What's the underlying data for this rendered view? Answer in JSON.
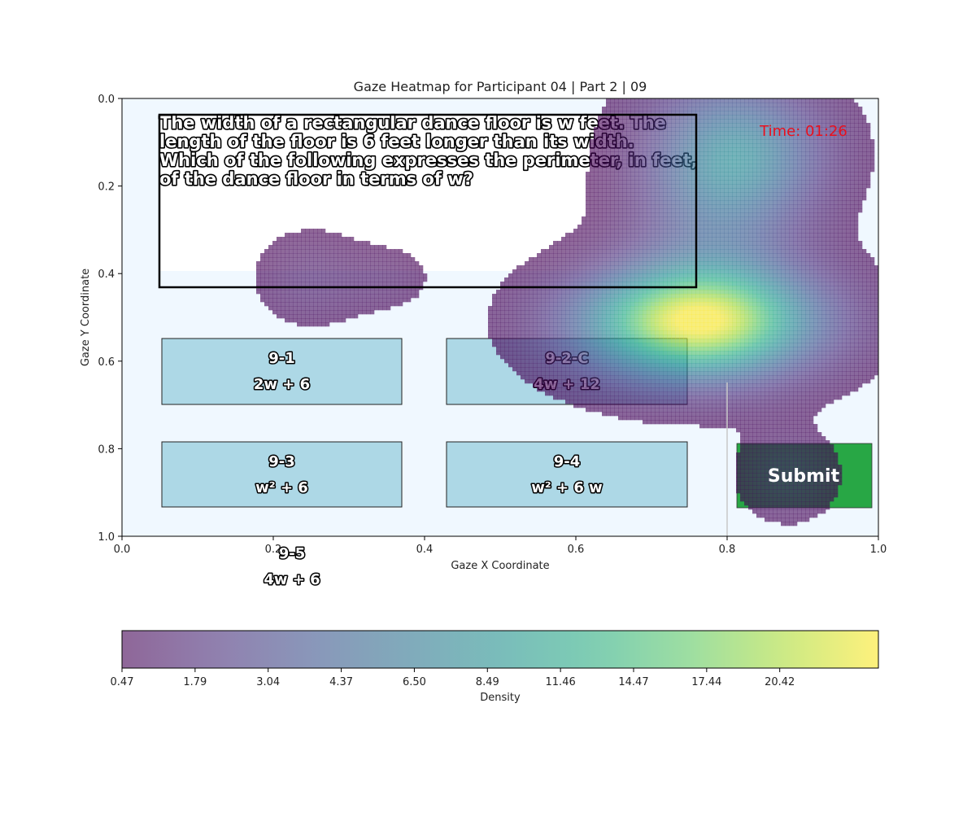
{
  "chart_data": {
    "type": "heatmap",
    "title": "Gaze Heatmap for Participant 04 | Part 2 | 09",
    "xlabel": "Gaze X Coordinate",
    "ylabel": "Gaze Y Coordinate",
    "xlim": [
      0.0,
      1.0
    ],
    "ylim": [
      1.0,
      0.0
    ],
    "x_ticks": [
      "0.0",
      "0.2",
      "0.4",
      "0.6",
      "0.8",
      "1.0"
    ],
    "y_ticks": [
      "0.0",
      "0.2",
      "0.4",
      "0.6",
      "0.8",
      "1.0"
    ],
    "colorbar": {
      "label": "Density",
      "orientation": "horizontal",
      "colormap": "viridis",
      "alpha": 0.6,
      "min": 0.47,
      "max": 22.0,
      "tick_labels": [
        "0.47",
        "1.79",
        "3.04",
        "4.37",
        "6.50",
        "8.49",
        "11.46",
        "14.47",
        "17.44",
        "20.42"
      ]
    },
    "density_peaks": [
      {
        "x": 0.76,
        "y": 0.51,
        "peak": 22.0
      },
      {
        "x": 0.79,
        "y": 0.2,
        "peak": 6.5
      },
      {
        "x": 0.83,
        "y": 0.12,
        "peak": 5.0
      },
      {
        "x": 0.25,
        "y": 0.41,
        "peak": 1.6
      },
      {
        "x": 0.88,
        "y": 0.86,
        "peak": 1.6
      }
    ],
    "overlay": {
      "question_lines": [
        "The width of a rectangular dance floor is w feet. The",
        "length of the floor is 6 feet longer than its width.",
        "Which of the following expresses the perimeter, in feet,",
        "of the dance floor in terms of w?"
      ],
      "timer": "Time: 01:26",
      "timer_color": "#e8101e",
      "options": [
        {
          "label": "9-1",
          "answer": "2w + 6"
        },
        {
          "label": "9-2-C",
          "answer": "4w + 12"
        },
        {
          "label": "9-3",
          "answer": "w² + 6"
        },
        {
          "label": "9-4",
          "answer": "w² + 6 w"
        },
        {
          "label": "9-5",
          "answer": "4w + 6"
        }
      ],
      "submit_label": "Submit",
      "submit_color": "#28a745",
      "option_color": "#add8e6",
      "background_color": "#f0f8ff"
    }
  }
}
